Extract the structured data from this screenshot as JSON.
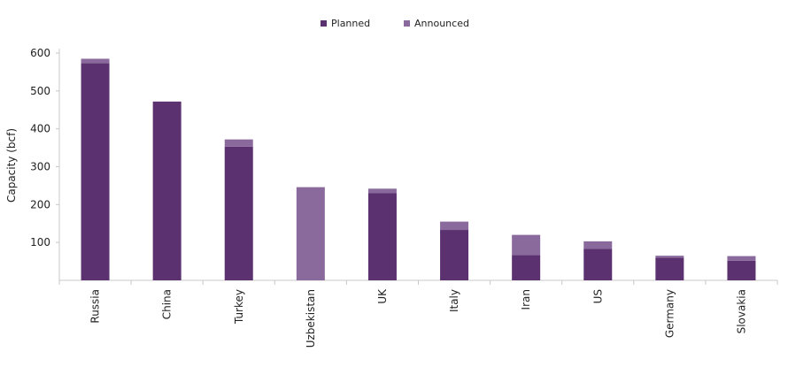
{
  "chart_data": {
    "type": "bar",
    "stacked": true,
    "categories": [
      "Russia",
      "China",
      "Turkey",
      "Uzbekistan",
      "UK",
      "Italy",
      "Iran",
      "US",
      "Germany",
      "Slovakia"
    ],
    "series": [
      {
        "name": "Planned",
        "color": "#5b3170",
        "values": [
          573,
          472,
          353,
          0,
          230,
          133,
          67,
          83,
          60,
          52
        ]
      },
      {
        "name": "Announced",
        "color": "#8a6a9c",
        "values": [
          12,
          0,
          19,
          246,
          12,
          22,
          53,
          20,
          5,
          12
        ]
      }
    ],
    "title": "",
    "xlabel": "",
    "ylabel": "Capacity (bcf)",
    "ylim": [
      0,
      600
    ],
    "yticks": [
      100,
      200,
      300,
      400,
      500,
      600
    ],
    "grid": false,
    "legend_position": "top-center"
  }
}
